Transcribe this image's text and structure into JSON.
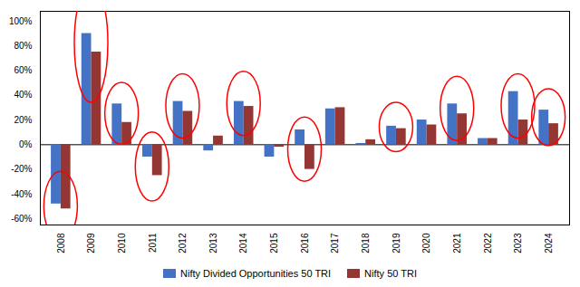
{
  "chart_data": {
    "type": "bar",
    "categories": [
      "2008",
      "2009",
      "2010",
      "2011",
      "2012",
      "2013",
      "2014",
      "2015",
      "2016",
      "2017",
      "2018",
      "2019",
      "2020",
      "2021",
      "2022",
      "2023",
      "2024"
    ],
    "series": [
      {
        "name": "Nifty Divided Opportunities 50 TRI",
        "color": "#4472C4",
        "values": [
          -48,
          90,
          33,
          -10,
          35,
          -5,
          35,
          -10,
          12,
          29,
          1,
          15,
          20,
          33,
          5,
          43,
          28
        ]
      },
      {
        "name": "Nifty 50 TRI",
        "color": "#943634",
        "values": [
          -52,
          75,
          18,
          -25,
          27,
          7,
          31,
          -2,
          -20,
          30,
          4,
          13,
          16,
          25,
          5,
          20,
          17
        ]
      }
    ],
    "ylim": [
      -65,
      108
    ],
    "yticks": [
      {
        "value": -60,
        "label": "-60%"
      },
      {
        "value": -40,
        "label": "-40%"
      },
      {
        "value": -20,
        "label": "-20%"
      },
      {
        "value": 0,
        "label": "0%"
      },
      {
        "value": 20,
        "label": "20%"
      },
      {
        "value": 40,
        "label": "40%"
      },
      {
        "value": 60,
        "label": "60%"
      },
      {
        "value": 80,
        "label": "80%"
      },
      {
        "value": 100,
        "label": "100%"
      }
    ],
    "grid": false,
    "legend": "bottom",
    "highlights": [
      {
        "category": "2008",
        "center": -50,
        "radius": 28,
        "color": "red"
      },
      {
        "category": "2009",
        "center": 82,
        "radius": 48,
        "color": "red"
      },
      {
        "category": "2010",
        "center": 25,
        "radius": 25,
        "color": "red"
      },
      {
        "category": "2011",
        "center": -18,
        "radius": 28,
        "color": "red"
      },
      {
        "category": "2012",
        "center": 31,
        "radius": 26,
        "color": "red"
      },
      {
        "category": "2014",
        "center": 33,
        "radius": 26,
        "color": "red"
      },
      {
        "category": "2016",
        "center": -4,
        "radius": 26,
        "color": "red"
      },
      {
        "category": "2019",
        "center": 14,
        "radius": 20,
        "color": "red"
      },
      {
        "category": "2021",
        "center": 29,
        "radius": 26,
        "color": "red"
      },
      {
        "category": "2023",
        "center": 31,
        "radius": 26,
        "color": "red"
      },
      {
        "category": "2024",
        "center": 22,
        "radius": 23,
        "color": "red"
      }
    ]
  }
}
